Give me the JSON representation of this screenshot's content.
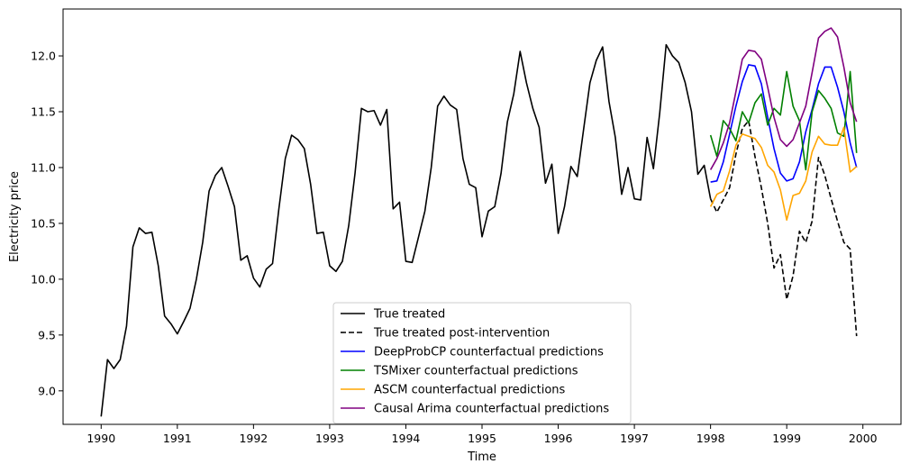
{
  "chart_data": {
    "type": "line",
    "xlabel": "Time",
    "ylabel": "Electricity price",
    "xlim": [
      1989.5,
      2000.5
    ],
    "ylim": [
      8.7,
      12.42
    ],
    "xticks": [
      1990,
      1991,
      1992,
      1993,
      1994,
      1995,
      1996,
      1997,
      1998,
      1999,
      2000
    ],
    "yticks": [
      9.0,
      9.5,
      10.0,
      10.5,
      11.0,
      11.5,
      12.0
    ],
    "grid": false,
    "legend_position": "lower-center",
    "series": [
      {
        "name": "True treated",
        "color": "#000000",
        "dash": "solid",
        "x": [
          1990.0,
          1990.083,
          1990.167,
          1990.25,
          1990.333,
          1990.417,
          1990.5,
          1990.583,
          1990.667,
          1990.75,
          1990.833,
          1990.917,
          1991.0,
          1991.083,
          1991.167,
          1991.25,
          1991.333,
          1991.417,
          1991.5,
          1991.583,
          1991.667,
          1991.75,
          1991.833,
          1991.917,
          1992.0,
          1992.083,
          1992.167,
          1992.25,
          1992.333,
          1992.417,
          1992.5,
          1992.583,
          1992.667,
          1992.75,
          1992.833,
          1992.917,
          1993.0,
          1993.083,
          1993.167,
          1993.25,
          1993.333,
          1993.417,
          1993.5,
          1993.583,
          1993.667,
          1993.75,
          1993.833,
          1993.917,
          1994.0,
          1994.083,
          1994.167,
          1994.25,
          1994.333,
          1994.417,
          1994.5,
          1994.583,
          1994.667,
          1994.75,
          1994.833,
          1994.917,
          1995.0,
          1995.083,
          1995.167,
          1995.25,
          1995.333,
          1995.417,
          1995.5,
          1995.583,
          1995.667,
          1995.75,
          1995.833,
          1995.917,
          1996.0,
          1996.083,
          1996.167,
          1996.25,
          1996.333,
          1996.417,
          1996.5,
          1996.583,
          1996.667,
          1996.75,
          1996.833,
          1996.917,
          1997.0,
          1997.083,
          1997.167,
          1997.25,
          1997.333,
          1997.417,
          1997.5,
          1997.583,
          1997.667,
          1997.75,
          1997.833,
          1997.917,
          1998.0
        ],
        "y": [
          8.77,
          9.28,
          9.2,
          9.28,
          9.58,
          10.29,
          10.46,
          10.41,
          10.42,
          10.12,
          9.67,
          9.6,
          9.51,
          9.62,
          9.74,
          10.0,
          10.33,
          10.79,
          10.93,
          11.0,
          10.83,
          10.65,
          10.17,
          10.21,
          10.01,
          9.93,
          10.09,
          10.14,
          10.63,
          11.08,
          11.29,
          11.25,
          11.17,
          10.85,
          10.41,
          10.42,
          10.12,
          10.07,
          10.16,
          10.48,
          10.95,
          11.53,
          11.5,
          11.51,
          11.38,
          11.52,
          10.63,
          10.69,
          10.16,
          10.15,
          10.38,
          10.61,
          11.0,
          11.55,
          11.64,
          11.56,
          11.52,
          11.08,
          10.85,
          10.82,
          10.38,
          10.61,
          10.65,
          10.95,
          11.41,
          11.66,
          12.04,
          11.76,
          11.53,
          11.36,
          10.86,
          11.03,
          10.41,
          10.65,
          11.01,
          10.92,
          11.34,
          11.76,
          11.96,
          12.08,
          11.59,
          11.27,
          10.76,
          11.0,
          10.72,
          10.71,
          11.27,
          10.99,
          11.49,
          12.1,
          12.0,
          11.94,
          11.76,
          11.5,
          10.94,
          11.02,
          10.72
        ]
      },
      {
        "name": "True treated post-intervention",
        "color": "#000000",
        "dash": "dashed",
        "x": [
          1998.0,
          1998.083,
          1998.167,
          1998.25,
          1998.333,
          1998.417,
          1998.5,
          1998.583,
          1998.667,
          1998.75,
          1998.833,
          1998.917,
          1999.0,
          1999.083,
          1999.167,
          1999.25,
          1999.333,
          1999.417,
          1999.5,
          1999.583,
          1999.667,
          1999.75,
          1999.833,
          1999.917
        ],
        "y": [
          10.72,
          10.6,
          10.71,
          10.82,
          11.12,
          11.35,
          11.42,
          11.1,
          10.82,
          10.5,
          10.1,
          10.22,
          9.82,
          10.03,
          10.43,
          10.33,
          10.52,
          11.09,
          10.93,
          10.72,
          10.52,
          10.33,
          10.27,
          9.49
        ]
      },
      {
        "name": "DeepProbCP counterfactual predictions",
        "color": "#0000ff",
        "dash": "solid",
        "x": [
          1998.0,
          1998.083,
          1998.167,
          1998.25,
          1998.333,
          1998.417,
          1998.5,
          1998.583,
          1998.667,
          1998.75,
          1998.833,
          1998.917,
          1999.0,
          1999.083,
          1999.167,
          1999.25,
          1999.333,
          1999.417,
          1999.5,
          1999.583,
          1999.667,
          1999.75,
          1999.833,
          1999.917
        ],
        "y": [
          10.87,
          10.88,
          11.05,
          11.3,
          11.55,
          11.77,
          11.92,
          11.91,
          11.75,
          11.45,
          11.17,
          10.95,
          10.88,
          10.9,
          11.05,
          11.32,
          11.52,
          11.75,
          11.9,
          11.9,
          11.72,
          11.5,
          11.22,
          11.0
        ]
      },
      {
        "name": "TSMixer counterfactual predictions",
        "color": "#008000",
        "dash": "solid",
        "x": [
          1998.0,
          1998.083,
          1998.167,
          1998.25,
          1998.333,
          1998.417,
          1998.5,
          1998.583,
          1998.667,
          1998.75,
          1998.833,
          1998.917,
          1999.0,
          1999.083,
          1999.167,
          1999.25,
          1999.333,
          1999.417,
          1999.5,
          1999.583,
          1999.667,
          1999.75,
          1999.833,
          1999.917
        ],
        "y": [
          11.29,
          11.1,
          11.42,
          11.35,
          11.24,
          11.5,
          11.4,
          11.58,
          11.66,
          11.38,
          11.53,
          11.47,
          11.86,
          11.55,
          11.42,
          10.98,
          11.5,
          11.69,
          11.62,
          11.53,
          11.31,
          11.28,
          11.86,
          11.13
        ]
      },
      {
        "name": "ASCM counterfactual predictions",
        "color": "#ffa500",
        "dash": "solid",
        "x": [
          1998.0,
          1998.083,
          1998.167,
          1998.25,
          1998.333,
          1998.417,
          1998.5,
          1998.583,
          1998.667,
          1998.75,
          1998.833,
          1998.917,
          1999.0,
          1999.083,
          1999.167,
          1999.25,
          1999.333,
          1999.417,
          1999.5,
          1999.583,
          1999.667,
          1999.75,
          1999.833,
          1999.917
        ],
        "y": [
          10.65,
          10.76,
          10.79,
          10.97,
          11.2,
          11.3,
          11.28,
          11.26,
          11.18,
          11.02,
          10.96,
          10.8,
          10.53,
          10.75,
          10.77,
          10.88,
          11.14,
          11.28,
          11.21,
          11.2,
          11.2,
          11.36,
          10.96,
          11.01
        ]
      },
      {
        "name": "Causal Arima counterfactual predictions",
        "color": "#800080",
        "dash": "solid",
        "x": [
          1998.0,
          1998.083,
          1998.167,
          1998.25,
          1998.333,
          1998.417,
          1998.5,
          1998.583,
          1998.667,
          1998.75,
          1998.833,
          1998.917,
          1999.0,
          1999.083,
          1999.167,
          1999.25,
          1999.333,
          1999.417,
          1999.5,
          1999.583,
          1999.667,
          1999.75,
          1999.833,
          1999.917
        ],
        "y": [
          10.98,
          11.08,
          11.22,
          11.4,
          11.68,
          11.97,
          12.05,
          12.04,
          11.97,
          11.72,
          11.45,
          11.25,
          11.19,
          11.25,
          11.4,
          11.55,
          11.85,
          12.16,
          12.22,
          12.25,
          12.17,
          11.9,
          11.58,
          11.41
        ]
      }
    ]
  }
}
